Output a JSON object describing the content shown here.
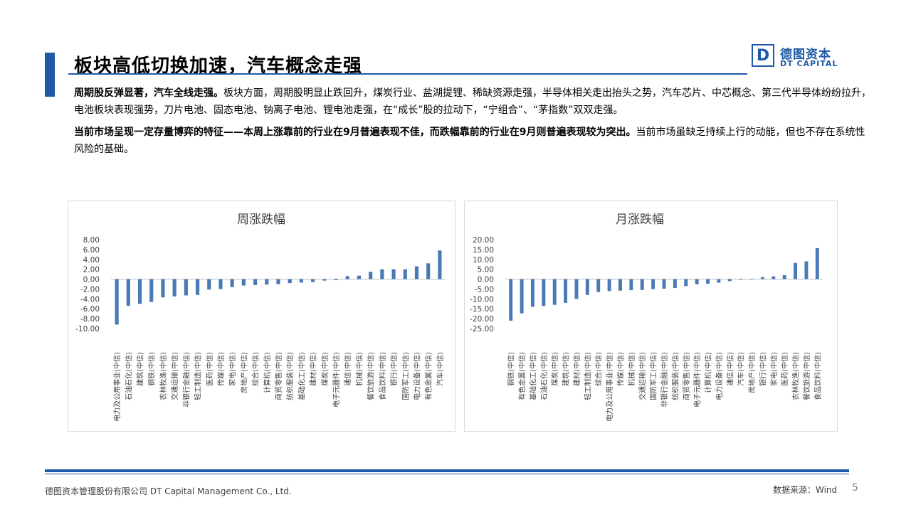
{
  "header": {
    "title": "板块高低切换加速，汽车概念走强",
    "logo_cn": "德图资本",
    "logo_en": "DT CAPITAL",
    "logo_letter": "D"
  },
  "body": {
    "p1_bold": "周期股反弹显著，汽车全线走强。",
    "p1_text": "板块方面，周期股明显止跌回升，煤炭行业、盐湖提锂、稀缺资源走强，半导体相关走出抬头之势，汽车芯片、中芯概念、第三代半导体纷纷拉升，电池板块表现强势，刀片电池、固态电池、钠离子电池、锂电池走强，在“成长”股的拉动下，“宁组合”、“茅指数”双双走强。",
    "p2_bold": "当前市场呈现一定存量博弈的特征——本周上涨靠前的行业在9月普遍表现不佳，而跌幅靠前的行业在9月则普遍表现较为突出。",
    "p2_text": "当前市场虽缺乏持续上行的动能，但也不存在系统性风险的基础。"
  },
  "footer": {
    "company": "德图资本管理股份有限公司  DT Capital Management  Co., Ltd.",
    "source": "数据来源：Wind",
    "page": "5"
  },
  "colors": {
    "accent": "#1f5aa6",
    "bar": "#4a7ab5"
  },
  "chart_data": [
    {
      "type": "bar",
      "title": "周涨跌幅",
      "ylim": [
        -10,
        8
      ],
      "yticks": [
        "8.00",
        "6.00",
        "4.00",
        "2.00",
        "0.00",
        "-2.00",
        "-4.00",
        "-6.00",
        "-8.00",
        "-10.00"
      ],
      "categories": [
        "电力及公用事业(中信)",
        "石油石化(中信)",
        "建筑(中信)",
        "钢铁(中信)",
        "农林牧渔(中信)",
        "交通运输(中信)",
        "非银行金融(中信)",
        "轻工制造(中信)",
        "医药(中信)",
        "传媒(中信)",
        "家电(中信)",
        "房地产(中信)",
        "综合(中信)",
        "计算机(中信)",
        "商贸零售(中信)",
        "纺织服装(中信)",
        "基础化工(中信)",
        "建材(中信)",
        "煤炭(中信)",
        "电子元器件(中信)",
        "通信(中信)",
        "机械(中信)",
        "餐饮旅游(中信)",
        "食品饮料(中信)",
        "银行(中信)",
        "国防军工(中信)",
        "电力设备(中信)",
        "有色金属(中信)",
        "汽车(中信)"
      ],
      "values": [
        -9.2,
        -5.4,
        -5.0,
        -4.6,
        -3.7,
        -3.5,
        -3.3,
        -3.2,
        -2.1,
        -2.0,
        -1.6,
        -1.3,
        -1.2,
        -1.1,
        -1.0,
        -0.8,
        -0.7,
        -0.6,
        -0.3,
        -0.2,
        0.6,
        0.7,
        1.5,
        2.0,
        2.0,
        2.0,
        2.6,
        3.2,
        5.8
      ]
    },
    {
      "type": "bar",
      "title": "月涨跌幅",
      "ylim": [
        -25,
        20
      ],
      "yticks": [
        "20.00",
        "15.00",
        "10.00",
        "5.00",
        "0.00",
        "-5.00",
        "-10.00",
        "-15.00",
        "-20.00",
        "-25.00"
      ],
      "categories": [
        "钢铁(中信)",
        "有色金属(中信)",
        "基础化工(中信)",
        "石油石化(中信)",
        "煤炭(中信)",
        "建筑(中信)",
        "建材(中信)",
        "轻工制造(中信)",
        "综合(中信)",
        "电力及公用事业(中信)",
        "传媒(中信)",
        "机械(中信)",
        "交通运输(中信)",
        "国防军工(中信)",
        "非银行金融(中信)",
        "纺织服装(中信)",
        "商贸零售(中信)",
        "电子元器件(中信)",
        "计算机(中信)",
        "电力设备(中信)",
        "通信(中信)",
        "汽车(中信)",
        "房地产(中信)",
        "银行(中信)",
        "家电(中信)",
        "医药(中信)",
        "农林牧渔(中信)",
        "餐饮旅游(中信)",
        "食品饮料(中信)"
      ],
      "values": [
        -21.0,
        -17.3,
        -14.0,
        -13.6,
        -13.0,
        -12.0,
        -10.0,
        -8.0,
        -6.5,
        -6.0,
        -5.8,
        -5.6,
        -5.5,
        -5.0,
        -4.8,
        -4.5,
        -3.5,
        -2.6,
        -2.3,
        -1.8,
        -1.0,
        -0.3,
        0.1,
        1.0,
        1.4,
        2.0,
        8.2,
        9.0,
        15.7
      ]
    }
  ]
}
